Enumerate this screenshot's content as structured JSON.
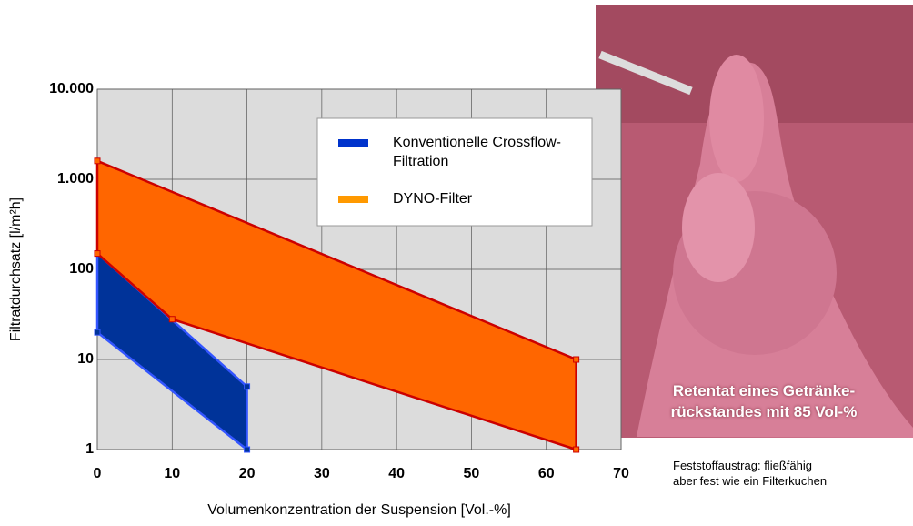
{
  "chart_data": {
    "type": "area-range",
    "x_label": "Volumenkonzentration der Suspension [Vol.-%]",
    "y_label": "Filtratdurchsatz [l/m²h]",
    "xlim": [
      0,
      70
    ],
    "xticks": [
      0,
      10,
      20,
      30,
      40,
      50,
      60,
      70
    ],
    "ylim": [
      1,
      10000
    ],
    "log_y": true,
    "yticks": [
      1,
      10,
      100,
      {
        "value": 1000,
        "label": "1.000"
      },
      {
        "value": 10000,
        "label": "10.000"
      }
    ],
    "grid": true,
    "legend": "top-right",
    "series": [
      {
        "name": "Konventionelle Crossflow-Filtration",
        "color": "#0033cc",
        "fill": "#003399",
        "edge": "#3355ff",
        "upper": {
          "x": [
            0,
            20
          ],
          "y": [
            150,
            5
          ]
        },
        "lower": {
          "x": [
            0,
            20
          ],
          "y": [
            20,
            1
          ]
        }
      },
      {
        "name": "DYNO-Filter",
        "color": "#ff9900",
        "fill": "#ff6600",
        "edge": "#cc0000",
        "upper": {
          "x": [
            0,
            64
          ],
          "y": [
            1600,
            10
          ]
        },
        "lower": {
          "x": [
            0,
            10,
            64
          ],
          "y": [
            150,
            28,
            1
          ]
        }
      }
    ]
  },
  "photo": {
    "caption": [
      "Retentat eines Getränke-",
      "rückstandes mit 85 Vol-%"
    ],
    "note": [
      "Feststoffaustrag: fließfähig",
      "aber fest wie ein Filterkuchen"
    ]
  }
}
